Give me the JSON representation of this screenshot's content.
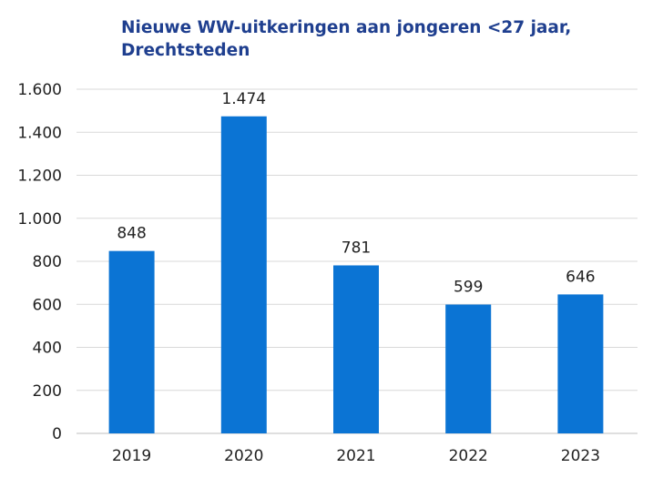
{
  "chart_data": {
    "type": "bar",
    "title": "Nieuwe WW-uitkeringen aan jongeren <27 jaar, Drechtsteden",
    "categories": [
      "2019",
      "2020",
      "2021",
      "2022",
      "2023"
    ],
    "values": [
      848,
      1474,
      781,
      599,
      646
    ],
    "value_labels": [
      "848",
      "1.474",
      "781",
      "599",
      "646"
    ],
    "y_ticks": [
      0,
      200,
      400,
      600,
      800,
      1000,
      1200,
      1400,
      1600
    ],
    "y_tick_labels": [
      "0",
      "200",
      "400",
      "600",
      "800",
      "1.000",
      "1.200",
      "1.400",
      "1.600"
    ],
    "ylim": [
      0,
      1600
    ],
    "xlabel": "",
    "ylabel": "",
    "grid": true,
    "legend": "none",
    "colors": {
      "bar": "#0b74d4",
      "grid": "#d9d9d9",
      "title": "#1f3f8f"
    }
  }
}
